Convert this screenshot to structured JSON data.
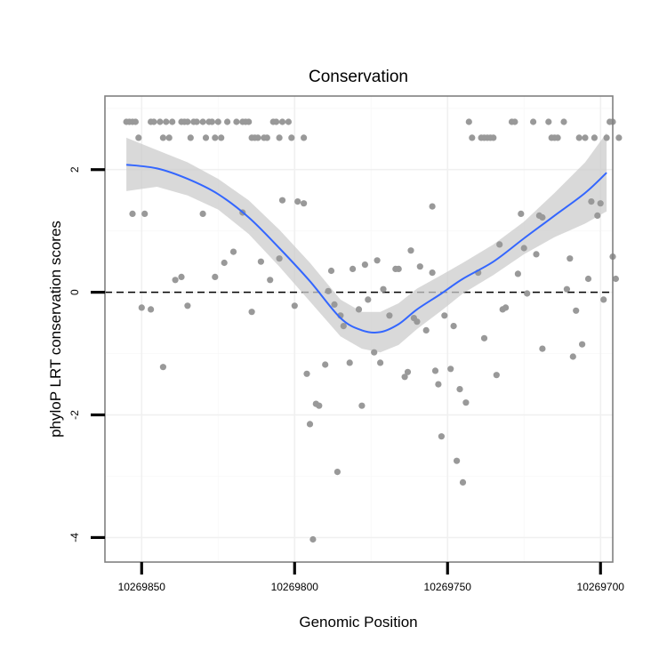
{
  "chart_data": {
    "type": "scatter",
    "title": "Conservation",
    "xlabel": "Genomic Position",
    "ylabel": "phyloP LRT conservation scores",
    "xlim": [
      10269862,
      10269696
    ],
    "ylim": [
      -4.4,
      3.2
    ],
    "x_reversed": true,
    "x_ticks": [
      10269850,
      10269800,
      10269750,
      10269700
    ],
    "x_tick_labels": [
      "10269850",
      "10269800",
      "10269750",
      "10269700"
    ],
    "y_ticks": [
      -4,
      -2,
      0,
      2
    ],
    "y_tick_labels": [
      "-4",
      "-2",
      "0",
      "2"
    ],
    "grid": true,
    "reference_line": {
      "y": 0,
      "style": "dashed"
    },
    "points": [
      {
        "x": 10269855,
        "y": 2.78
      },
      {
        "x": 10269854,
        "y": 2.78
      },
      {
        "x": 10269853,
        "y": 2.78
      },
      {
        "x": 10269852,
        "y": 2.78
      },
      {
        "x": 10269851,
        "y": 2.52
      },
      {
        "x": 10269853,
        "y": 1.28
      },
      {
        "x": 10269850,
        "y": -0.25
      },
      {
        "x": 10269849,
        "y": 1.28
      },
      {
        "x": 10269847,
        "y": 2.78
      },
      {
        "x": 10269846,
        "y": 2.78
      },
      {
        "x": 10269847,
        "y": -0.28
      },
      {
        "x": 10269844,
        "y": 2.78
      },
      {
        "x": 10269843,
        "y": 2.52
      },
      {
        "x": 10269842,
        "y": 2.78
      },
      {
        "x": 10269841,
        "y": 2.52
      },
      {
        "x": 10269840,
        "y": 2.78
      },
      {
        "x": 10269839,
        "y": 0.2
      },
      {
        "x": 10269837,
        "y": 0.25
      },
      {
        "x": 10269843,
        "y": -1.22
      },
      {
        "x": 10269837,
        "y": 2.78
      },
      {
        "x": 10269836,
        "y": 2.78
      },
      {
        "x": 10269835,
        "y": 2.78
      },
      {
        "x": 10269834,
        "y": 2.52
      },
      {
        "x": 10269833,
        "y": 2.78
      },
      {
        "x": 10269832,
        "y": 2.78
      },
      {
        "x": 10269835,
        "y": -0.22
      },
      {
        "x": 10269830,
        "y": 2.78
      },
      {
        "x": 10269829,
        "y": 2.52
      },
      {
        "x": 10269830,
        "y": 1.28
      },
      {
        "x": 10269828,
        "y": 2.78
      },
      {
        "x": 10269827,
        "y": 2.78
      },
      {
        "x": 10269826,
        "y": 2.52
      },
      {
        "x": 10269825,
        "y": 2.78
      },
      {
        "x": 10269824,
        "y": 2.52
      },
      {
        "x": 10269826,
        "y": 0.25
      },
      {
        "x": 10269823,
        "y": 0.48
      },
      {
        "x": 10269822,
        "y": 2.78
      },
      {
        "x": 10269819,
        "y": 2.78
      },
      {
        "x": 10269820,
        "y": 0.66
      },
      {
        "x": 10269817,
        "y": 2.78
      },
      {
        "x": 10269816,
        "y": 2.78
      },
      {
        "x": 10269815,
        "y": 2.78
      },
      {
        "x": 10269814,
        "y": 2.52
      },
      {
        "x": 10269813,
        "y": 2.52
      },
      {
        "x": 10269812,
        "y": 2.52
      },
      {
        "x": 10269817,
        "y": 1.3
      },
      {
        "x": 10269814,
        "y": -0.32
      },
      {
        "x": 10269811,
        "y": 0.5
      },
      {
        "x": 10269810,
        "y": 2.52
      },
      {
        "x": 10269809,
        "y": 2.52
      },
      {
        "x": 10269808,
        "y": 0.2
      },
      {
        "x": 10269807,
        "y": 2.78
      },
      {
        "x": 10269806,
        "y": 2.78
      },
      {
        "x": 10269805,
        "y": 2.52
      },
      {
        "x": 10269804,
        "y": 2.78
      },
      {
        "x": 10269805,
        "y": 0.55
      },
      {
        "x": 10269804,
        "y": 1.5
      },
      {
        "x": 10269801,
        "y": 2.52
      },
      {
        "x": 10269800,
        "y": -0.22
      },
      {
        "x": 10269799,
        "y": 1.48
      },
      {
        "x": 10269797,
        "y": 1.45
      },
      {
        "x": 10269802,
        "y": 2.78
      },
      {
        "x": 10269797,
        "y": 2.52
      },
      {
        "x": 10269796,
        "y": -1.33
      },
      {
        "x": 10269795,
        "y": -2.15
      },
      {
        "x": 10269793,
        "y": -1.82
      },
      {
        "x": 10269792,
        "y": -1.85
      },
      {
        "x": 10269794,
        "y": -4.03
      },
      {
        "x": 10269790,
        "y": -1.18
      },
      {
        "x": 10269789,
        "y": 0.02
      },
      {
        "x": 10269788,
        "y": 0.35
      },
      {
        "x": 10269787,
        "y": -0.2
      },
      {
        "x": 10269786,
        "y": -2.93
      },
      {
        "x": 10269785,
        "y": -0.38
      },
      {
        "x": 10269784,
        "y": -0.55
      },
      {
        "x": 10269782,
        "y": -1.15
      },
      {
        "x": 10269781,
        "y": 0.38
      },
      {
        "x": 10269779,
        "y": -0.28
      },
      {
        "x": 10269778,
        "y": -1.85
      },
      {
        "x": 10269777,
        "y": 0.45
      },
      {
        "x": 10269776,
        "y": -0.12
      },
      {
        "x": 10269774,
        "y": -0.98
      },
      {
        "x": 10269772,
        "y": -1.15
      },
      {
        "x": 10269773,
        "y": 0.52
      },
      {
        "x": 10269771,
        "y": 0.05
      },
      {
        "x": 10269769,
        "y": -0.38
      },
      {
        "x": 10269767,
        "y": 0.38
      },
      {
        "x": 10269766,
        "y": 0.38
      },
      {
        "x": 10269764,
        "y": -1.38
      },
      {
        "x": 10269763,
        "y": -1.3
      },
      {
        "x": 10269762,
        "y": 0.68
      },
      {
        "x": 10269761,
        "y": -0.42
      },
      {
        "x": 10269760,
        "y": -0.48
      },
      {
        "x": 10269759,
        "y": 0.42
      },
      {
        "x": 10269757,
        "y": -0.62
      },
      {
        "x": 10269755,
        "y": 1.4
      },
      {
        "x": 10269755,
        "y": 0.32
      },
      {
        "x": 10269754,
        "y": -1.28
      },
      {
        "x": 10269753,
        "y": -1.5
      },
      {
        "x": 10269752,
        "y": -2.35
      },
      {
        "x": 10269751,
        "y": -0.38
      },
      {
        "x": 10269749,
        "y": -1.25
      },
      {
        "x": 10269748,
        "y": -0.55
      },
      {
        "x": 10269747,
        "y": -2.75
      },
      {
        "x": 10269746,
        "y": -1.58
      },
      {
        "x": 10269745,
        "y": -3.1
      },
      {
        "x": 10269744,
        "y": -1.8
      },
      {
        "x": 10269743,
        "y": 2.78
      },
      {
        "x": 10269742,
        "y": 2.52
      },
      {
        "x": 10269740,
        "y": 0.32
      },
      {
        "x": 10269739,
        "y": 2.52
      },
      {
        "x": 10269738,
        "y": 2.52
      },
      {
        "x": 10269737,
        "y": 2.52
      },
      {
        "x": 10269736,
        "y": 2.52
      },
      {
        "x": 10269735,
        "y": 2.52
      },
      {
        "x": 10269738,
        "y": -0.75
      },
      {
        "x": 10269734,
        "y": -1.35
      },
      {
        "x": 10269733,
        "y": 0.78
      },
      {
        "x": 10269732,
        "y": -0.28
      },
      {
        "x": 10269731,
        "y": -0.25
      },
      {
        "x": 10269729,
        "y": 2.78
      },
      {
        "x": 10269728,
        "y": 2.78
      },
      {
        "x": 10269727,
        "y": 0.3
      },
      {
        "x": 10269726,
        "y": 1.28
      },
      {
        "x": 10269725,
        "y": 0.72
      },
      {
        "x": 10269724,
        "y": -0.02
      },
      {
        "x": 10269722,
        "y": 2.78
      },
      {
        "x": 10269721,
        "y": 0.62
      },
      {
        "x": 10269720,
        "y": 1.25
      },
      {
        "x": 10269719,
        "y": 1.22
      },
      {
        "x": 10269719,
        "y": -0.92
      },
      {
        "x": 10269717,
        "y": 2.78
      },
      {
        "x": 10269716,
        "y": 2.52
      },
      {
        "x": 10269715,
        "y": 2.52
      },
      {
        "x": 10269714,
        "y": 2.52
      },
      {
        "x": 10269712,
        "y": 2.78
      },
      {
        "x": 10269711,
        "y": 0.05
      },
      {
        "x": 10269710,
        "y": 0.55
      },
      {
        "x": 10269709,
        "y": -1.05
      },
      {
        "x": 10269708,
        "y": -0.3
      },
      {
        "x": 10269707,
        "y": 2.52
      },
      {
        "x": 10269706,
        "y": -0.85
      },
      {
        "x": 10269705,
        "y": 2.52
      },
      {
        "x": 10269704,
        "y": 0.22
      },
      {
        "x": 10269703,
        "y": 1.48
      },
      {
        "x": 10269702,
        "y": 2.52
      },
      {
        "x": 10269701,
        "y": 1.25
      },
      {
        "x": 10269700,
        "y": 1.45
      },
      {
        "x": 10269699,
        "y": -0.12
      },
      {
        "x": 10269698,
        "y": 2.52
      },
      {
        "x": 10269697,
        "y": 2.78
      },
      {
        "x": 10269696,
        "y": 0.58
      },
      {
        "x": 10269696,
        "y": 2.78
      },
      {
        "x": 10269695,
        "y": 0.22
      },
      {
        "x": 10269694,
        "y": 2.52
      }
    ],
    "smooth": {
      "method": "loess",
      "color": "#3366ff",
      "ribbon_color": "#cccccc",
      "x": [
        10269855,
        10269845,
        10269835,
        10269825,
        10269815,
        10269805,
        10269795,
        10269785,
        10269778,
        10269772,
        10269766,
        10269760,
        10269752,
        10269745,
        10269735,
        10269725,
        10269715,
        10269705,
        10269698
      ],
      "y": [
        2.08,
        2.02,
        1.85,
        1.6,
        1.22,
        0.72,
        0.18,
        -0.42,
        -0.62,
        -0.65,
        -0.52,
        -0.28,
        -0.02,
        0.22,
        0.5,
        0.88,
        1.25,
        1.62,
        1.95
      ],
      "ymin": [
        1.65,
        1.72,
        1.58,
        1.35,
        0.95,
        0.42,
        -0.15,
        -0.72,
        -0.92,
        -0.98,
        -0.86,
        -0.6,
        -0.3,
        -0.02,
        0.28,
        0.62,
        0.9,
        1.12,
        1.32
      ],
      "ymax": [
        2.52,
        2.32,
        2.12,
        1.85,
        1.5,
        1.02,
        0.48,
        -0.12,
        -0.32,
        -0.32,
        -0.18,
        0.06,
        0.28,
        0.48,
        0.78,
        1.15,
        1.62,
        2.12,
        2.6
      ]
    }
  }
}
